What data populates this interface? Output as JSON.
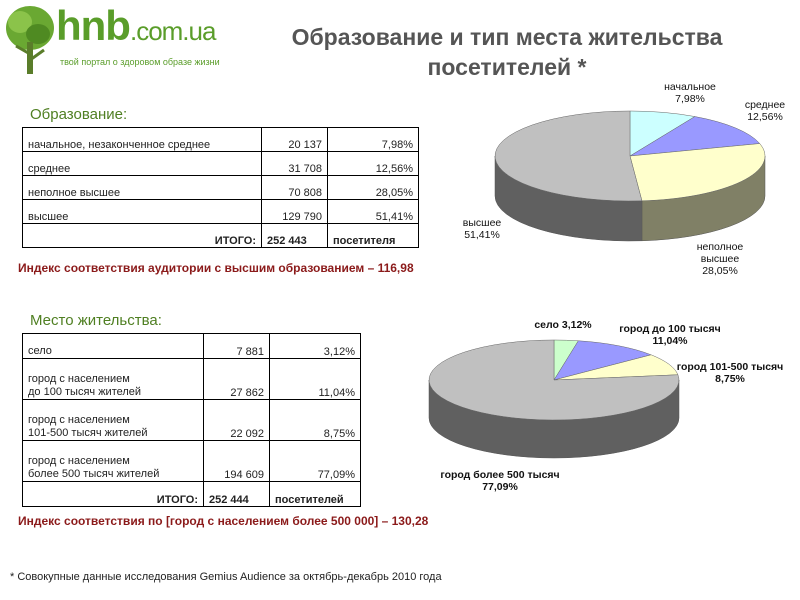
{
  "logo": {
    "name": "hnb",
    "domain": ".com.ua",
    "tagline": "твой портал о здоровом образе жизни"
  },
  "title_line1": "Образование и тип места жительства",
  "title_line2": "посетителей *",
  "education": {
    "label": "Образование:",
    "rows": [
      {
        "name": "начальное, незаконченное среднее",
        "count": "20 137",
        "percent": "7,98%"
      },
      {
        "name": "среднее",
        "count": "31 708",
        "percent": "12,56%"
      },
      {
        "name": "неполное высшее",
        "count": "70 808",
        "percent": "28,05%"
      },
      {
        "name": "высшее",
        "count": "129 790",
        "percent": "51,41%"
      }
    ],
    "total_label": "ИТОГО:",
    "total_count": "252 443",
    "total_unit": "посетителя",
    "index_text": "Индекс соответствия аудитории с высшим образованием – 116,98"
  },
  "residence": {
    "label": "Место жительства:",
    "rows": [
      {
        "line1": "село",
        "line2": "",
        "count": "7 881",
        "percent": "3,12%"
      },
      {
        "line1": "город с населением",
        "line2": "до 100 тысяч жителей",
        "count": "27 862",
        "percent": "11,04%"
      },
      {
        "line1": "город с населением",
        "line2": "101-500 тысяч жителей",
        "count": "22 092",
        "percent": "8,75%"
      },
      {
        "line1": "город с населением",
        "line2": "более 500 тысяч жителей",
        "count": "194 609",
        "percent": "77,09%"
      }
    ],
    "total_label": "ИТОГО:",
    "total_count": "252 444",
    "total_unit": "посетителей",
    "index_text": "Индекс соответствия по [город с населением более 500 000] – 130,28"
  },
  "chart_data": [
    {
      "type": "pie",
      "title": "",
      "series": [
        {
          "label_lines": [
            "начальное",
            "7,98%"
          ],
          "value": 7.98,
          "color": "#ccffff"
        },
        {
          "label_lines": [
            "среднее",
            "12,56%"
          ],
          "value": 12.56,
          "color": "#9999ff"
        },
        {
          "label_lines": [
            "неполное",
            "высшее",
            "28,05%"
          ],
          "value": 28.05,
          "color": "#ffffcc"
        },
        {
          "label_lines": [
            "высшее",
            "51,41%"
          ],
          "value": 51.41,
          "color": "#c0c0c0"
        }
      ]
    },
    {
      "type": "pie",
      "title": "",
      "series": [
        {
          "label_lines": [
            "село 3,12%"
          ],
          "value": 3.12,
          "color": "#ccffcc"
        },
        {
          "label_lines": [
            "город до 100 тысяч",
            "11,04%"
          ],
          "value": 11.04,
          "color": "#9999ff"
        },
        {
          "label_lines": [
            "город 101-500 тысяч",
            "8,75%"
          ],
          "value": 8.75,
          "color": "#ffffcc"
        },
        {
          "label_lines": [
            "город более 500 тысяч",
            "77,09%"
          ],
          "value": 77.09,
          "color": "#c0c0c0"
        }
      ]
    }
  ],
  "footnote": "* Совокупные данные исследования Gemius Audience за октябрь-декабрь 2010 года"
}
